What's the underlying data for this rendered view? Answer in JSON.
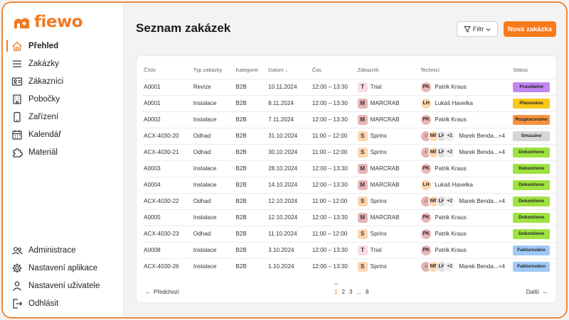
{
  "app": {
    "name": "fiewo",
    "brand_color": "#f07a24"
  },
  "sidebar": {
    "items": [
      {
        "label": "Přehled",
        "icon": "home-icon",
        "active": true
      },
      {
        "label": "Zakázky",
        "icon": "list-icon"
      },
      {
        "label": "Zákazníci",
        "icon": "contact-card-icon"
      },
      {
        "label": "Pobočky",
        "icon": "building-icon"
      },
      {
        "label": "Zařízení",
        "icon": "phone-icon"
      },
      {
        "label": "Kalendář",
        "icon": "calendar-icon"
      },
      {
        "label": "Materiál",
        "icon": "puzzle-icon"
      }
    ],
    "bottom_items": [
      {
        "label": "Administrace",
        "icon": "users-icon"
      },
      {
        "label": "Nastavení aplikace",
        "icon": "gear-icon"
      },
      {
        "label": "Nastavení uživatele",
        "icon": "user-icon"
      },
      {
        "label": "Odhlásit",
        "icon": "logout-icon"
      }
    ]
  },
  "header": {
    "title": "Seznam zakázek",
    "filter_label": "Filtr",
    "new_label": "Nová zakázka"
  },
  "table": {
    "columns": [
      "Číslo",
      "Typ zakázky",
      "Kategorie",
      "Datum",
      "Čas",
      "Zákazník",
      "Technici",
      "Status"
    ],
    "rows": [
      {
        "cislo": "A0001",
        "typ": "Revize",
        "kat": "B2B",
        "datum": "10.11.2024",
        "cas": "12:00 – 13:30",
        "zak": "Trial",
        "zak_i": "T",
        "tech": "Patrik Kraus",
        "tech_i": "PK",
        "multi": false,
        "status": "Pravidelné"
      },
      {
        "cislo": "A0001",
        "typ": "Instalace",
        "kat": "B2B",
        "datum": "8.11.2024",
        "cas": "12:00 – 13:30",
        "zak": "MARCRAB",
        "zak_i": "M",
        "tech": "Lukáš Havelka",
        "tech_i": "LH",
        "multi": false,
        "status": "Plánováno"
      },
      {
        "cislo": "A0002",
        "typ": "Instalace",
        "kat": "B2B",
        "datum": "7.11.2024",
        "cas": "12:00 – 13:30",
        "zak": "MARCRAB",
        "zak_i": "M",
        "tech": "Patrik Kraus",
        "tech_i": "PK",
        "multi": false,
        "status": "Rozpracováno"
      },
      {
        "cislo": "ACX-4030-20",
        "typ": "Odhad",
        "kat": "B2B",
        "datum": "31.10.2024",
        "cas": "11:00 – 12:00",
        "zak": "Sprinx",
        "zak_i": "S",
        "tech": "Marek Benda...+4",
        "tech_i": "+2",
        "multi": true,
        "status": "Smazáno"
      },
      {
        "cislo": "ACX-4030-21",
        "typ": "Odhad",
        "kat": "B2B",
        "datum": "30.10.2024",
        "cas": "11:00 – 12:00",
        "zak": "Sprinx",
        "zak_i": "S",
        "tech": "Marek Benda...+4",
        "tech_i": "+2",
        "multi": true,
        "status": "Dokončeno"
      },
      {
        "cislo": "A0003",
        "typ": "Instalace",
        "kat": "B2B",
        "datum": "28.10.2024",
        "cas": "12:00 – 13:30",
        "zak": "MARCRAB",
        "zak_i": "M",
        "tech": "Patrik Kraus",
        "tech_i": "PK",
        "multi": false,
        "status": "Dokončeno"
      },
      {
        "cislo": "A0004",
        "typ": "Instalace",
        "kat": "B2B",
        "datum": "14.10.2024",
        "cas": "12:00 – 13:30",
        "zak": "MARCRAB",
        "zak_i": "M",
        "tech": "Lukáš Havelka",
        "tech_i": "LH",
        "multi": false,
        "status": "Dokončeno"
      },
      {
        "cislo": "ACX-4030-22",
        "typ": "Odhad",
        "kat": "B2B",
        "datum": "12.10.2024",
        "cas": "11:00 – 12:00",
        "zak": "Sprinx",
        "zak_i": "S",
        "tech": "Marek Benda...+4",
        "tech_i": "+2",
        "multi": true,
        "status": "Dokončeno"
      },
      {
        "cislo": "A0005",
        "typ": "Instalace",
        "kat": "B2B",
        "datum": "12.10.2024",
        "cas": "12:00 – 13:30",
        "zak": "MARCRAB",
        "zak_i": "M",
        "tech": "Patrik Kraus",
        "tech_i": "PK",
        "multi": false,
        "status": "Dokončeno"
      },
      {
        "cislo": "ACX-4030-23",
        "typ": "Odhad",
        "kat": "B2B",
        "datum": "11.10.2024",
        "cas": "11:00 – 12:00",
        "zak": "Sprinx",
        "zak_i": "S",
        "tech": "Patrik Kraus",
        "tech_i": "PK",
        "multi": false,
        "status": "Dokončeno"
      },
      {
        "cislo": "A0008",
        "typ": "Instalace",
        "kat": "B2B",
        "datum": "3.10.2024",
        "cas": "12:00 – 13:30",
        "zak": "Trial",
        "zak_i": "T",
        "tech": "Patrik Kraus",
        "tech_i": "PK",
        "multi": false,
        "status": "Fakturováno"
      },
      {
        "cislo": "ACX-4030-26",
        "typ": "Instalace",
        "kat": "B2B",
        "datum": "1.10.2024",
        "cas": "12:00 – 13:30",
        "zak": "Sprinx",
        "zak_i": "S",
        "tech": "Marek Benda...+4",
        "tech_i": "+2",
        "multi": true,
        "status": "Fakturováno"
      }
    ]
  },
  "customer_colors": {
    "T": "#fadbe6",
    "M": "#e8b4b8",
    "S": "#fbd6b0"
  },
  "tech_colors": {
    "PK": "#e8b8b8",
    "LH": "#fbd9b0"
  },
  "status_colors": {
    "Pravidelné": "#c286f0",
    "Plánováno": "#f8c91a",
    "Rozpracováno": "#f6923e",
    "Smazáno": "#d6d6d6",
    "Dokončeno": "#9ee23f",
    "Fakturováno": "#9ec9f6"
  },
  "pager": {
    "prev": "Předchozí",
    "next": "Další",
    "pages": [
      "1",
      "2",
      "3",
      "...",
      "8"
    ]
  }
}
